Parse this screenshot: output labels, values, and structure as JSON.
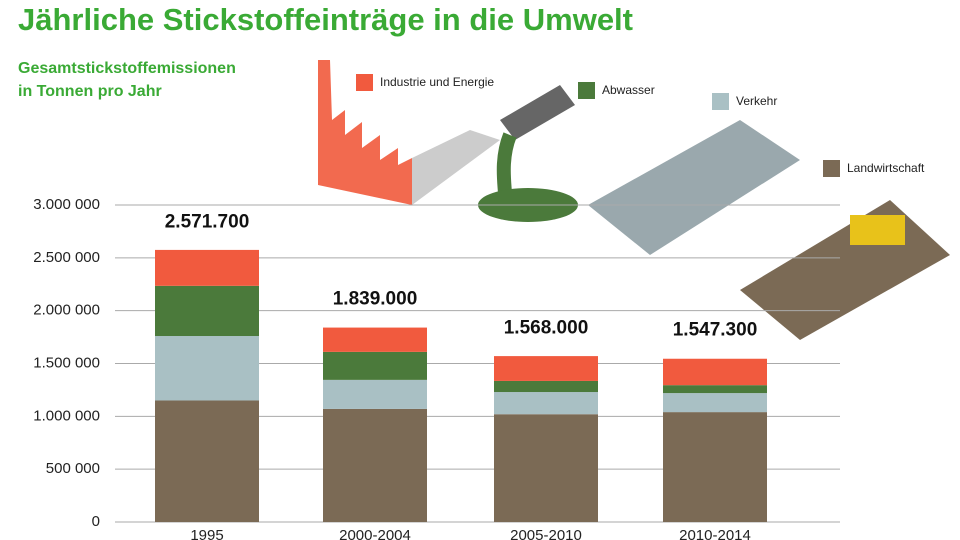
{
  "chart_data": {
    "type": "stacked_bar",
    "title": "Jährliche Stickstoffeinträge in die Umwelt",
    "subtitle_lines": [
      "Gesamtstickstoffemissionen",
      "in Tonnen pro Jahr"
    ],
    "categories": [
      "1995",
      "2000-2004",
      "2005-2010",
      "2010-2014"
    ],
    "series": [
      {
        "name": "Landwirtschaft",
        "color": "#7b6a55",
        "values": [
          1150000,
          1070000,
          1020000,
          1040000
        ]
      },
      {
        "name": "Verkehr",
        "color": "#a9c0c4",
        "values": [
          610000,
          275000,
          210000,
          180000
        ]
      },
      {
        "name": "Abwasser",
        "color": "#4b7a3b",
        "values": [
          475000,
          265000,
          105000,
          75000
        ]
      },
      {
        "name": "Industrie und Energie",
        "color": "#f15a3e",
        "values": [
          340000,
          230000,
          235000,
          250000
        ]
      }
    ],
    "totals": {
      "values": [
        2571700,
        1839000,
        1568000,
        1547300
      ],
      "value_labels": [
        "2.571.700",
        "1.839.000",
        "1.568.000",
        "1.547.300"
      ]
    },
    "ylim": [
      0,
      3000000
    ],
    "yticks": [
      {
        "value": 0,
        "label": "0"
      },
      {
        "value": 500000,
        "label": "500 000"
      },
      {
        "value": 1000000,
        "label": "1.000 000"
      },
      {
        "value": 1500000,
        "label": "1.500 000"
      },
      {
        "value": 2000000,
        "label": "2.000 000"
      },
      {
        "value": 2500000,
        "label": "2.500 000"
      },
      {
        "value": 3000000,
        "label": "3.000 000"
      }
    ],
    "grid": true
  }
}
